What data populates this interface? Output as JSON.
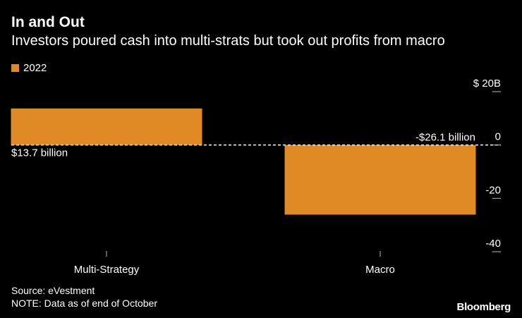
{
  "chart_data": {
    "type": "bar",
    "title": "In and Out",
    "subtitle": "Investors poured cash into multi-strats but took out profits from macro",
    "categories": [
      "Multi-Strategy",
      "Macro"
    ],
    "series": [
      {
        "name": "2022",
        "values": [
          13.7,
          -26.1
        ]
      }
    ],
    "data_labels": [
      "$13.7 billion",
      "-$26.1 billion"
    ],
    "y_ticks": [
      {
        "value": 20,
        "label": "$ 20B"
      },
      {
        "value": 0,
        "label": "0"
      },
      {
        "value": -20,
        "label": "-20"
      },
      {
        "value": -40,
        "label": "-40"
      }
    ],
    "ylim": [
      -40,
      20
    ],
    "zero_line": "dashed",
    "grid": false,
    "legend_position": "top-left"
  },
  "colors": {
    "background": "#000000",
    "bar": "#e08a26",
    "text": "#ffffff",
    "axis": "#bbbbbb"
  },
  "footer": {
    "source": "Source: eVestment",
    "note": "NOTE: Data as of end of October",
    "brand": "Bloomberg"
  }
}
